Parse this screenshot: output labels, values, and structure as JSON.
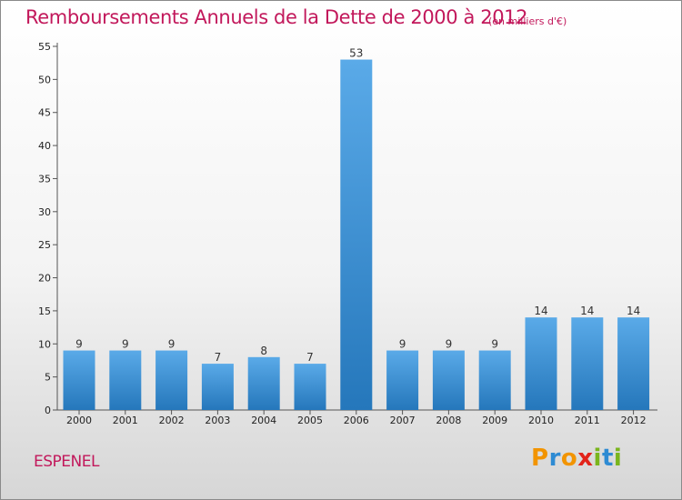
{
  "header": {
    "title": "Remboursements Annuels de la Dette de 2000 à 2012",
    "subtitle": "(en milliers d'€)"
  },
  "footer": {
    "commune": "ESPENEL",
    "brand": "Proxiti"
  },
  "colors": {
    "title": "#c2185b",
    "bar_top": "#5aaae8",
    "bar_bottom": "#2577bb",
    "brand_letters": [
      "#f29400",
      "#2e8bd3",
      "#f29400",
      "#e2231a",
      "#7ab51d",
      "#2e8bd3",
      "#7ab51d"
    ]
  },
  "chart_data": {
    "type": "bar",
    "categories": [
      "2000",
      "2001",
      "2002",
      "2003",
      "2004",
      "2005",
      "2006",
      "2007",
      "2008",
      "2009",
      "2010",
      "2011",
      "2012"
    ],
    "values": [
      9,
      9,
      9,
      7,
      8,
      7,
      53,
      9,
      9,
      9,
      14,
      14,
      14
    ],
    "ylim": [
      0,
      55
    ],
    "yticks": [
      0,
      5,
      10,
      15,
      20,
      25,
      30,
      35,
      40,
      45,
      50,
      55
    ],
    "grid": false,
    "xlabel": "",
    "ylabel": ""
  }
}
